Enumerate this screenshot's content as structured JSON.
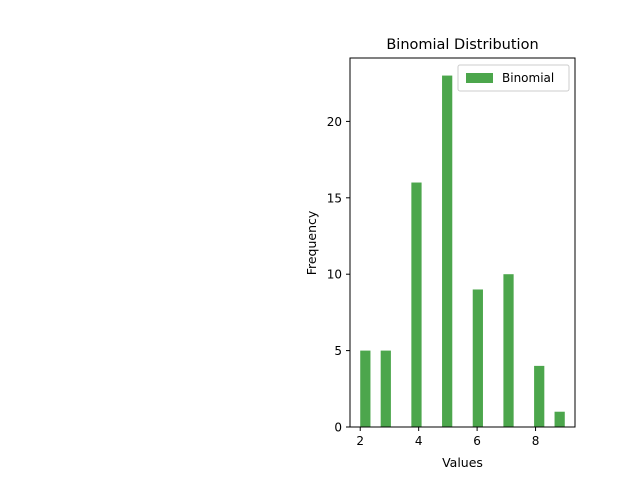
{
  "chart_data": {
    "type": "bar",
    "title": "Binomial Distribution",
    "xlabel": "Values",
    "ylabel": "Frequency",
    "xlim": [
      1.65,
      9.35
    ],
    "ylim": [
      0,
      24.15
    ],
    "xticks": [
      2,
      4,
      6,
      8
    ],
    "yticks": [
      0,
      5,
      10,
      15,
      20
    ],
    "legend_position": "top-right",
    "grid": false,
    "series": [
      {
        "name": "Binomial",
        "color": "#4ca64c",
        "bars": [
          {
            "x0": 2.0,
            "x1": 2.35,
            "value": 5
          },
          {
            "x0": 2.7,
            "x1": 3.05,
            "value": 5
          },
          {
            "x0": 3.75,
            "x1": 4.1,
            "value": 16
          },
          {
            "x0": 4.8,
            "x1": 5.15,
            "value": 23
          },
          {
            "x0": 5.85,
            "x1": 6.2,
            "value": 9
          },
          {
            "x0": 6.9,
            "x1": 7.25,
            "value": 10
          },
          {
            "x0": 7.95,
            "x1": 8.3,
            "value": 4
          },
          {
            "x0": 8.65,
            "x1": 9.0,
            "value": 1
          }
        ]
      }
    ]
  }
}
